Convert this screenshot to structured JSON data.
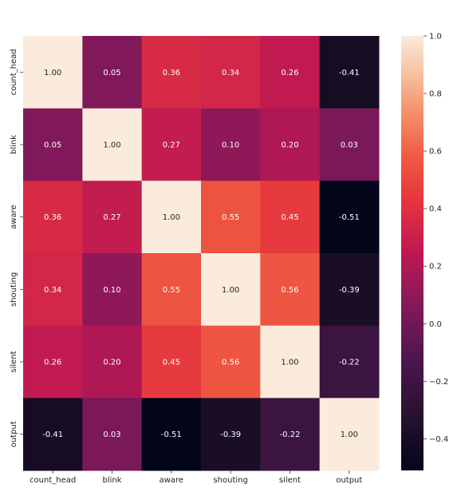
{
  "chart_data": {
    "type": "heatmap",
    "title": "",
    "xlabel": "",
    "ylabel": "",
    "x_labels": [
      "count_head",
      "blink",
      "aware",
      "shouting",
      "silent",
      "output"
    ],
    "y_labels": [
      "count_head",
      "blink",
      "aware",
      "shouting",
      "silent",
      "output"
    ],
    "values": [
      [
        1.0,
        0.05,
        0.36,
        0.34,
        0.26,
        -0.41
      ],
      [
        0.05,
        1.0,
        0.27,
        0.1,
        0.2,
        0.03
      ],
      [
        0.36,
        0.27,
        1.0,
        0.55,
        0.45,
        -0.51
      ],
      [
        0.34,
        0.1,
        0.55,
        1.0,
        0.56,
        -0.39
      ],
      [
        0.26,
        0.2,
        0.45,
        0.56,
        1.0,
        -0.22
      ],
      [
        -0.41,
        0.03,
        -0.51,
        -0.39,
        -0.22,
        1.0
      ]
    ],
    "annotations": [
      [
        "1.00",
        "0.05",
        "0.36",
        "0.34",
        "0.26",
        "-0.41"
      ],
      [
        "0.05",
        "1.00",
        "0.27",
        "0.10",
        "0.20",
        "0.03"
      ],
      [
        "0.36",
        "0.27",
        "1.00",
        "0.55",
        "0.45",
        "-0.51"
      ],
      [
        "0.34",
        "0.10",
        "0.55",
        "1.00",
        "0.56",
        "-0.39"
      ],
      [
        "0.26",
        "0.20",
        "0.45",
        "0.56",
        "1.00",
        "-0.22"
      ],
      [
        "-0.41",
        "0.03",
        "-0.51",
        "-0.39",
        "-0.22",
        "1.00"
      ]
    ],
    "colorbar": {
      "range": [
        -0.51,
        1.0
      ],
      "ticks": [
        1.0,
        0.8,
        0.6,
        0.4,
        0.2,
        0.0,
        -0.2,
        -0.4
      ],
      "tick_labels": [
        "1.0",
        "0.8",
        "0.6",
        "0.4",
        "0.2",
        "0.0",
        "−0.2",
        "−0.4"
      ]
    },
    "colormap": "rocket",
    "grid": false,
    "legend": "right"
  }
}
